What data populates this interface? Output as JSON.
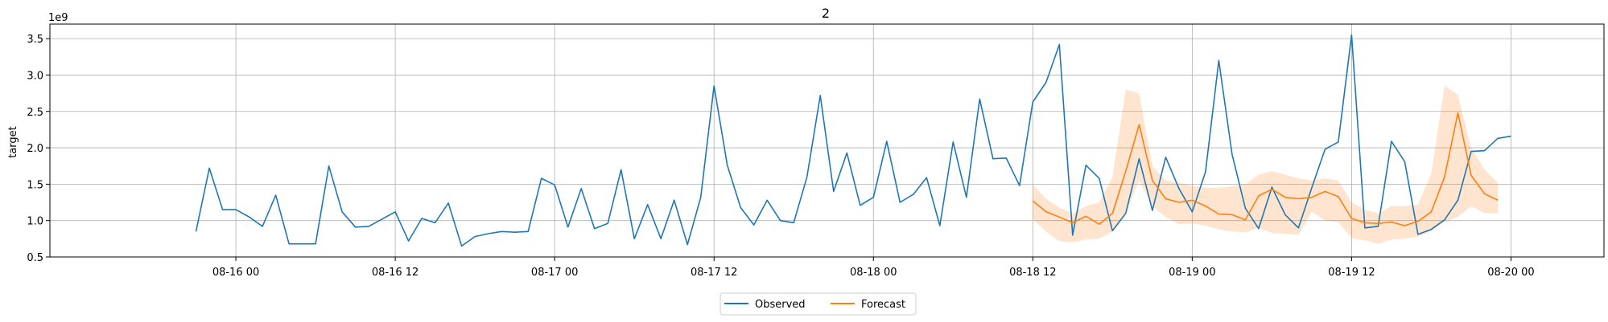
{
  "chart_data": {
    "type": "line",
    "title": "2",
    "xlabel": "",
    "ylabel": "target",
    "y_offset_label": "1e9",
    "ylim": [
      0.5,
      3.7
    ],
    "y_ticks": [
      0.5,
      1.0,
      1.5,
      2.0,
      2.5,
      3.0,
      3.5
    ],
    "y_tick_labels": [
      "0.5",
      "1.0",
      "1.5",
      "2.0",
      "2.5",
      "3.0",
      "3.5"
    ],
    "x_range": [
      "2023-08-15 10:00",
      "2023-08-20 07:00"
    ],
    "x_ticks": [
      "2023-08-16 00:00",
      "2023-08-16 12:00",
      "2023-08-17 00:00",
      "2023-08-17 12:00",
      "2023-08-18 00:00",
      "2023-08-18 12:00",
      "2023-08-19 00:00",
      "2023-08-19 12:00",
      "2023-08-20 00:00"
    ],
    "x_tick_labels": [
      "08-16 00",
      "08-16 12",
      "08-17 00",
      "08-17 12",
      "08-18 00",
      "08-18 12",
      "08-19 00",
      "08-19 12",
      "08-20 00"
    ],
    "grid": true,
    "legend_position": "bottom-center",
    "series": [
      {
        "name": "Observed",
        "color": "#1f77b4",
        "start": "2023-08-15 21:00",
        "step_hours": 1,
        "values": [
          0.85,
          1.72,
          1.15,
          1.15,
          1.05,
          0.92,
          1.35,
          0.68,
          0.68,
          0.68,
          1.75,
          1.12,
          0.91,
          0.92,
          1.02,
          1.12,
          0.72,
          1.03,
          0.97,
          1.24,
          0.65,
          0.78,
          0.82,
          0.85,
          0.84,
          0.85,
          1.58,
          1.49,
          0.91,
          1.44,
          0.89,
          0.96,
          1.7,
          0.75,
          1.22,
          0.75,
          1.28,
          0.67,
          1.32,
          2.85,
          1.76,
          1.18,
          0.94,
          1.28,
          1.0,
          0.97,
          1.6,
          2.72,
          1.4,
          1.93,
          1.21,
          1.32,
          2.09,
          1.25,
          1.36,
          1.59,
          0.93,
          2.08,
          1.32,
          2.67,
          1.85,
          1.86,
          1.48,
          2.63,
          2.9,
          3.42,
          0.8,
          1.76,
          1.58,
          0.86,
          1.1,
          1.85,
          1.14,
          1.87,
          1.44,
          1.12,
          1.67,
          3.2,
          1.91,
          1.17,
          0.89,
          1.46,
          1.08,
          0.9,
          1.45,
          1.98,
          2.08,
          3.55,
          0.9,
          0.92,
          2.09,
          1.81,
          0.81,
          0.88,
          1.01,
          1.28,
          1.95,
          1.96,
          2.13,
          2.16
        ]
      },
      {
        "name": "Forecast",
        "color": "#ff7f0e",
        "start": "2023-08-18 12:00",
        "step_hours": 1,
        "values": [
          1.27,
          1.12,
          1.05,
          0.97,
          1.06,
          0.95,
          1.1,
          1.68,
          2.32,
          1.55,
          1.3,
          1.25,
          1.28,
          1.2,
          1.09,
          1.08,
          1.01,
          1.34,
          1.43,
          1.32,
          1.3,
          1.32,
          1.4,
          1.33,
          1.03,
          0.97,
          0.96,
          0.98,
          0.93,
          0.99,
          1.12,
          1.6,
          2.48,
          1.62,
          1.37,
          1.28
        ],
        "band_lower": [
          1.02,
          0.85,
          0.72,
          0.7,
          0.74,
          0.75,
          0.85,
          1.1,
          1.55,
          1.2,
          1.05,
          0.95,
          0.96,
          0.93,
          0.88,
          0.85,
          0.84,
          0.9,
          0.83,
          0.82,
          0.8,
          1.12,
          1.0,
          0.98,
          0.76,
          0.73,
          0.68,
          0.74,
          0.75,
          0.78,
          0.85,
          0.98,
          1.05,
          1.2,
          1.1,
          1.1
        ],
        "band_upper": [
          1.5,
          1.3,
          1.18,
          1.1,
          1.2,
          1.25,
          1.6,
          2.8,
          2.75,
          1.75,
          1.55,
          1.52,
          1.48,
          1.45,
          1.45,
          1.47,
          1.5,
          1.63,
          1.68,
          1.63,
          1.58,
          1.55,
          1.58,
          1.55,
          1.25,
          1.15,
          1.1,
          1.2,
          1.2,
          1.22,
          1.65,
          2.85,
          2.73,
          2.0,
          1.7,
          1.52
        ]
      }
    ]
  }
}
